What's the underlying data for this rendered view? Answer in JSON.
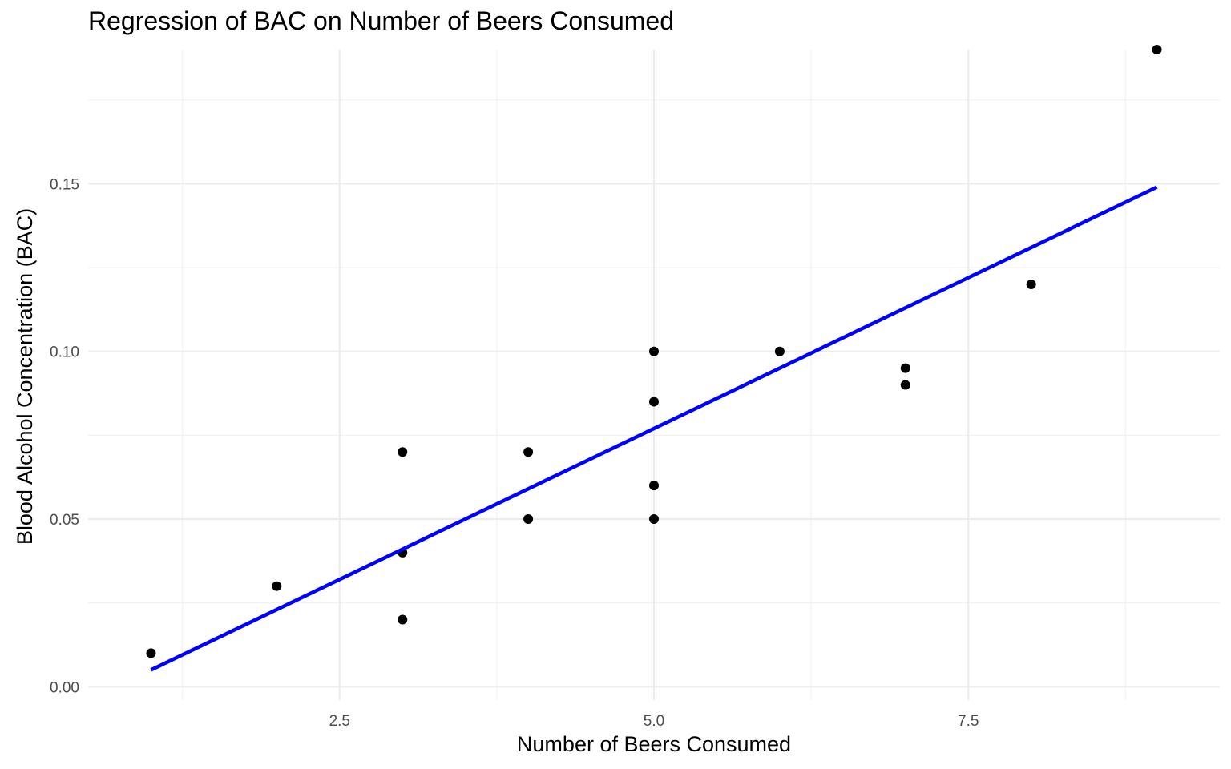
{
  "chart_data": {
    "type": "scatter",
    "title": "Regression of BAC on Number of Beers Consumed",
    "xlabel": "Number of Beers Consumed",
    "ylabel": "Blood Alcohol Concentration (BAC)",
    "xlim": [
      0.5,
      9.5
    ],
    "ylim": [
      -0.004,
      0.19
    ],
    "x_ticks": [
      2.5,
      5.0,
      7.5
    ],
    "x_tick_labels": [
      "2.5",
      "5.0",
      "7.5"
    ],
    "y_ticks": [
      0.0,
      0.05,
      0.1,
      0.15
    ],
    "y_tick_labels": [
      "0.00",
      "0.05",
      "0.10",
      "0.15"
    ],
    "grid": true,
    "points": {
      "x": [
        1,
        2,
        3,
        3,
        3,
        4,
        4,
        5,
        5,
        5,
        5,
        6,
        7,
        7,
        8,
        9
      ],
      "y": [
        0.01,
        0.03,
        0.02,
        0.04,
        0.07,
        0.05,
        0.07,
        0.05,
        0.06,
        0.085,
        0.1,
        0.1,
        0.09,
        0.095,
        0.12,
        0.19
      ],
      "color": "#000000"
    },
    "regression_line": {
      "x": [
        1,
        9
      ],
      "y": [
        0.005,
        0.149
      ],
      "color": "#0000ff"
    }
  }
}
